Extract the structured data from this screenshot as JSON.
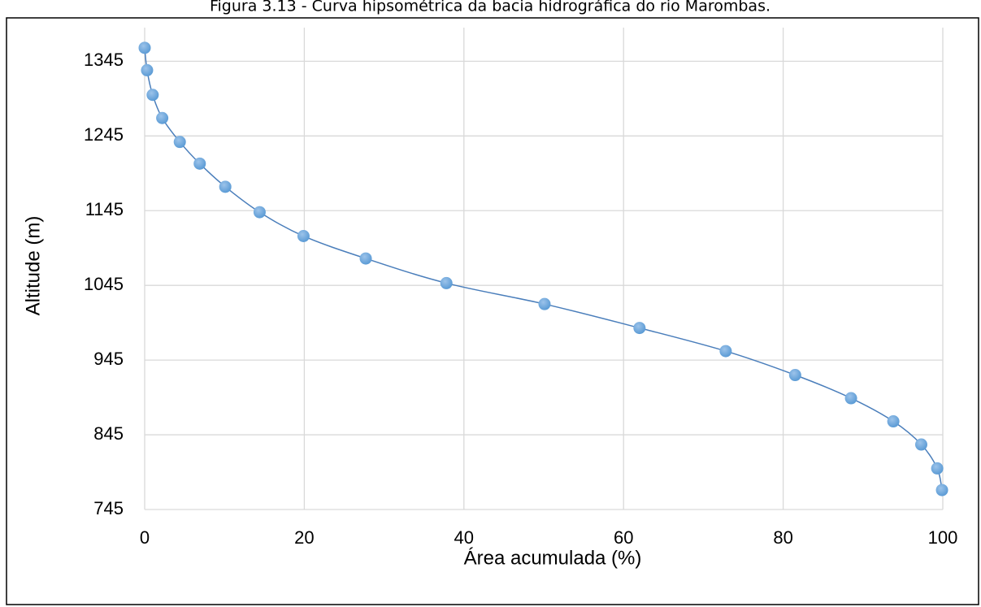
{
  "chart_data": {
    "type": "line",
    "title": "Figura 3.13 - Curva hipsométrica da bacia hidrográfica do rio Marombas.",
    "x_label": "Área acumulada (%)",
    "y_label": "Altitude (m)",
    "x": [
      0,
      0.3,
      1.0,
      2.2,
      4.4,
      6.9,
      10.1,
      14.4,
      19.9,
      27.7,
      37.8,
      50.1,
      62.0,
      72.8,
      81.5,
      88.5,
      93.8,
      97.3,
      99.3,
      99.9
    ],
    "series": [
      {
        "name": "Altitude",
        "color": "#5b9bd5",
        "values": [
          1363,
          1333,
          1300,
          1269,
          1237,
          1208,
          1177,
          1143,
          1111,
          1081,
          1048,
          1020,
          988,
          957,
          925,
          894,
          863,
          832,
          800,
          771
        ]
      }
    ],
    "xlim": [
      0,
      100
    ],
    "xticks": [
      0,
      20,
      40,
      60,
      80,
      100
    ],
    "ylim": [
      745,
      1390
    ],
    "yticks": [
      745,
      845,
      945,
      1045,
      1145,
      1245,
      1345
    ],
    "grid": true
  }
}
